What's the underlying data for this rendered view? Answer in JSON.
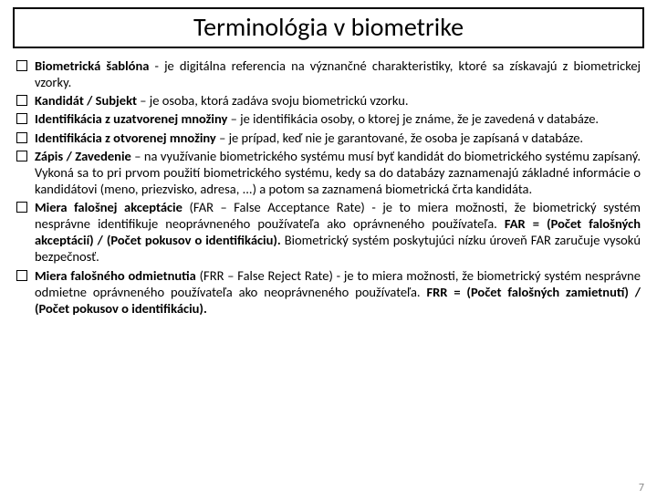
{
  "title": "Terminológia v biometrike",
  "items": [
    {
      "term": "Biometrická šablóna",
      "rest": " - je digitálna referencia na význančné charakteristiky, ktoré sa získavajú z biometrickej vzorky."
    },
    {
      "term": "Kandidát / Subjekt",
      "rest": " – je osoba, ktorá zadáva svoju biometrickú vzorku."
    },
    {
      "term": "Identifikácia z uzatvorenej množiny",
      "rest": " – je identifikácia osoby, o ktorej je známe, že je zavedená v databáze."
    },
    {
      "term": "Identifikácia z otvorenej množiny",
      "rest": " – je prípad, keď nie je garantované, že osoba je zapísaná v databáze."
    },
    {
      "term": "Zápis / Zavedenie",
      "rest": " – na využívanie biometrického systému musí byť kandidát do biometrického systému zapísaný. Vykoná sa to pri prvom použití biometrického systému, kedy sa do databázy zaznamenajú základné informácie o kandidátovi (meno, priezvisko, adresa, ...) a potom sa zaznamená biometrická črta kandidáta."
    },
    {
      "term": "Miera falošnej akceptácie",
      "rest1": " (FAR – False Acceptance Rate) - je to miera možnosti, že biometrický systém nesprávne identifikuje neoprávneného používateľa ako oprávneného používateľa. ",
      "formula": "FAR = (Počet falošných akceptácií) / (Počet pokusov o identifikáciu).",
      "rest2": " Biometrický systém poskytujúci nízku úroveň FAR zaručuje vysokú bezpečnosť."
    },
    {
      "term": "Miera falošného odmietnutia",
      "rest1": " (FRR – False Reject Rate) - je to miera možnosti, že biometrický systém nesprávne odmietne oprávneného používateľa ako neoprávneného používateľa. ",
      "formula": "FRR = (Počet falošných zamietnutí) / (Počet pokusov o identifikáciu)."
    }
  ],
  "page": "7",
  "colors": {
    "border": "#000000",
    "text": "#000000",
    "page_num": "#888888",
    "bg": "#ffffff"
  },
  "fonts": {
    "title_size": 28,
    "body_size": 14.5,
    "page_num_size": 12
  }
}
